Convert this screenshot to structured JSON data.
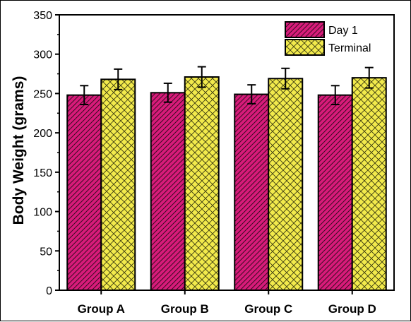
{
  "chart_data": {
    "type": "bar",
    "title": "",
    "xlabel": "",
    "ylabel": "Body Weight (grams)",
    "categories": [
      "Group A",
      "Group B",
      "Group C",
      "Group D"
    ],
    "series": [
      {
        "name": "Day 1",
        "color": "#d81b7a",
        "pattern": "diagonal-hatch",
        "values": [
          248,
          251,
          249,
          248
        ],
        "errors": [
          12,
          12,
          12,
          12
        ]
      },
      {
        "name": "Terminal",
        "color": "#f2ea4c",
        "pattern": "cross-hatch",
        "values": [
          268,
          271,
          269,
          270
        ],
        "errors": [
          13,
          13,
          13,
          13
        ]
      }
    ],
    "ylim": [
      0,
      350
    ],
    "yticks": [
      "0",
      "50",
      "100",
      "150",
      "200",
      "250",
      "300",
      "350"
    ],
    "grid": false,
    "legend_position": "top-right"
  }
}
